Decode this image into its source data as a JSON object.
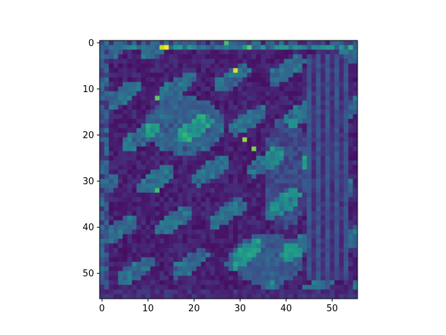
{
  "chart_data": {
    "type": "heatmap",
    "title": "",
    "xlabel": "",
    "ylabel": "",
    "grid": false,
    "colormap": "viridis",
    "value_range": [
      0,
      1
    ],
    "xlim": [
      -0.5,
      55.5
    ],
    "ylim": [
      55.5,
      -0.5
    ],
    "x_ticks": [
      0,
      10,
      20,
      30,
      40,
      50
    ],
    "y_ticks": [
      0,
      10,
      20,
      30,
      40,
      50
    ],
    "x_tick_labels": [
      "0",
      "10",
      "20",
      "30",
      "40",
      "50"
    ],
    "y_tick_labels": [
      "0",
      "10",
      "20",
      "30",
      "40",
      "50"
    ],
    "rows": 56,
    "cols": 56,
    "description_of_values": "56x56 grid of activation intensities (0=dark purple, 1=yellow); approximate, generated from dominant visible structures",
    "hotspots": [
      {
        "row": 1,
        "col": 14,
        "value": 1.0
      },
      {
        "row": 1,
        "col": 13,
        "value": 0.9
      },
      {
        "row": 6,
        "col": 29,
        "value": 0.95
      },
      {
        "row": 21,
        "col": 31,
        "value": 0.85
      },
      {
        "row": 23,
        "col": 33,
        "value": 0.8
      },
      {
        "row": 12,
        "col": 12,
        "value": 0.75
      },
      {
        "row": 32,
        "col": 12,
        "value": 0.7
      },
      {
        "row": 0,
        "col": 27,
        "value": 0.7
      },
      {
        "row": 1,
        "col": 32,
        "value": 0.75
      },
      {
        "row": 1,
        "col": 54,
        "value": 0.65
      }
    ]
  }
}
